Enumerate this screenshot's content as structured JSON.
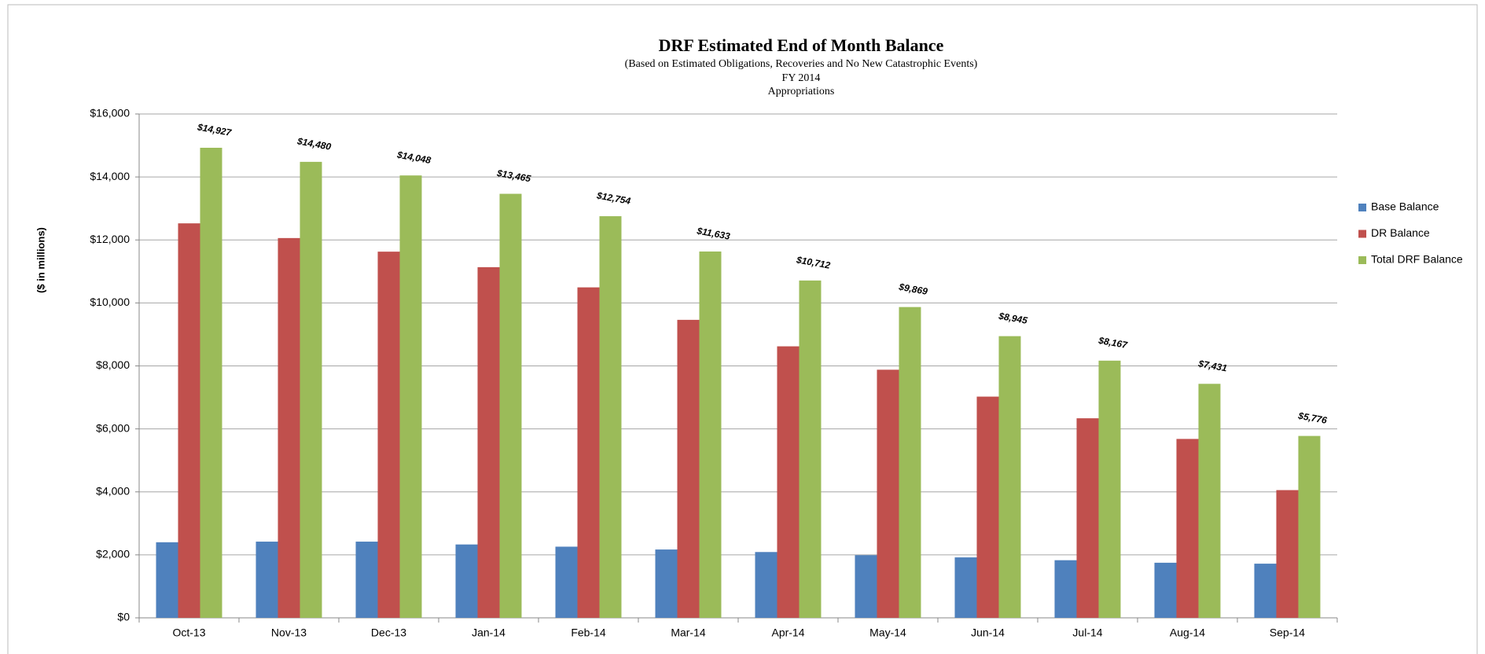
{
  "chart_data": {
    "type": "bar",
    "title": "DRF Estimated End of Month Balance",
    "subtitles": [
      "(Based on Estimated Obligations, Recoveries and No New Catastrophic Events)",
      "FY 2014",
      "Appropriations"
    ],
    "y_label": "($ in millions)",
    "categories": [
      "Oct-13",
      "Nov-13",
      "Dec-13",
      "Jan-14",
      "Feb-14",
      "Mar-14",
      "Apr-14",
      "May-14",
      "Jun-14",
      "Jul-14",
      "Aug-14",
      "Sep-14"
    ],
    "series": [
      {
        "name": "Base Balance",
        "color": "#4f81bd",
        "values": [
          2400,
          2420,
          2420,
          2330,
          2260,
          2170,
          2090,
          1990,
          1920,
          1830,
          1750,
          1720
        ]
      },
      {
        "name": "DR Balance",
        "color": "#c0504d",
        "values": [
          12527,
          12060,
          11628,
          11135,
          10494,
          9463,
          8622,
          7879,
          7025,
          6337,
          5681,
          4056
        ]
      },
      {
        "name": "Total DRF Balance",
        "color": "#9bbb59",
        "values": [
          14927,
          14480,
          14048,
          13465,
          12754,
          11633,
          10712,
          9869,
          8945,
          8167,
          7431,
          5776
        ],
        "value_labels": [
          "$14,927",
          "$14,480",
          "$14,048",
          "$13,465",
          "$12,754",
          "$11,633",
          "$10,712",
          "$9,869",
          "$8,945",
          "$8,167",
          "$7,431",
          "$5,776"
        ]
      }
    ],
    "ylim": [
      0,
      16000
    ],
    "yticks": [
      {
        "value": 0,
        "label": "$0"
      },
      {
        "value": 2000,
        "label": "$2,000"
      },
      {
        "value": 4000,
        "label": "$4,000"
      },
      {
        "value": 6000,
        "label": "$6,000"
      },
      {
        "value": 8000,
        "label": "$8,000"
      },
      {
        "value": 10000,
        "label": "$10,000"
      },
      {
        "value": 12000,
        "label": "$12,000"
      },
      {
        "value": 14000,
        "label": "$14,000"
      },
      {
        "value": 16000,
        "label": "$16,000"
      }
    ],
    "grid": true,
    "legend": "right"
  }
}
